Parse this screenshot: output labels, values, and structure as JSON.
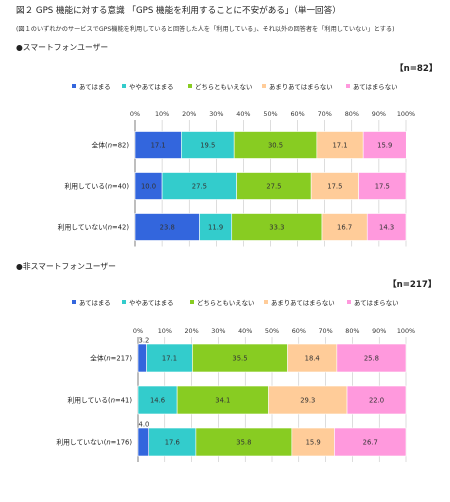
{
  "title": "図２ GPS 機能に対する意識 「GPS 機能を利用することに不安がある」（単一回答）",
  "note": "(図１のいずれかのサービスでGPS機能を利用していると回答した人を「利用している」、それ以外の回答者を「利用していない」とする)",
  "colors": [
    "#3366dd",
    "#33cccc",
    "#88cc22",
    "#ffcc99",
    "#ff99dd"
  ],
  "chart_data": [
    {
      "type": "bar",
      "orientation": "horizontal-stacked-100",
      "section_label": "●スマートフォンユーザー",
      "n_label": "【n=82】",
      "legend": [
        "あてはまる",
        "ややあてはまる",
        "どちらともいえない",
        "あまりあてはまらない",
        "あてはまらない"
      ],
      "xlim": [
        0,
        100
      ],
      "x_ticks": [
        "0%",
        "10%",
        "20%",
        "30%",
        "40%",
        "50%",
        "60%",
        "70%",
        "80%",
        "90%",
        "100%"
      ],
      "categories": [
        "全体(n=82)",
        "利用している(n=40)",
        "利用していない(n=42)"
      ],
      "rows": [
        {
          "label": "全体(n=82)",
          "values": [
            17.1,
            19.5,
            30.5,
            17.1,
            15.9
          ],
          "labels": [
            "17.1",
            "19.5",
            "30.5",
            "17.1",
            "15.9"
          ]
        },
        {
          "label": "利用している(n=40)",
          "values": [
            10.0,
            27.5,
            27.5,
            17.5,
            17.5
          ],
          "labels": [
            "10.0",
            "27.5",
            "27.5",
            "17.5",
            "17.5"
          ]
        },
        {
          "label": "利用していない(n=42)",
          "values": [
            23.8,
            11.9,
            33.3,
            16.7,
            14.3
          ],
          "labels": [
            "23.8",
            "11.9",
            "33.3",
            "16.7",
            "14.3"
          ]
        }
      ]
    },
    {
      "type": "bar",
      "orientation": "horizontal-stacked-100",
      "section_label": "●非スマートフォンユーザー",
      "n_label": "【n=217】",
      "legend": [
        "あてはまる",
        "ややあてはまる",
        "どちらともいえない",
        "あまりあてはまらない",
        "あてはまらない"
      ],
      "xlim": [
        0,
        100
      ],
      "x_ticks": [
        "0%",
        "10%",
        "20%",
        "30%",
        "40%",
        "50%",
        "60%",
        "70%",
        "80%",
        "90%",
        "100%"
      ],
      "categories": [
        "全体(n=217)",
        "利用している(n=41)",
        "利用していない(n=176)"
      ],
      "rows": [
        {
          "label": "全体(n=217)",
          "values": [
            3.2,
            17.1,
            35.5,
            18.4,
            25.8
          ],
          "labels": [
            "3.2",
            "17.1",
            "35.5",
            "18.4",
            "25.8"
          ]
        },
        {
          "label": "利用している(n=41)",
          "values": [
            0,
            14.6,
            34.1,
            29.3,
            22.0
          ],
          "labels": [
            "",
            "14.6",
            "34.1",
            "29.3",
            "22.0"
          ]
        },
        {
          "label": "利用していない(n=176)",
          "values": [
            4.0,
            17.6,
            35.8,
            15.9,
            26.7
          ],
          "labels": [
            "4.0",
            "17.6",
            "35.8",
            "15.9",
            "26.7"
          ]
        }
      ]
    }
  ]
}
